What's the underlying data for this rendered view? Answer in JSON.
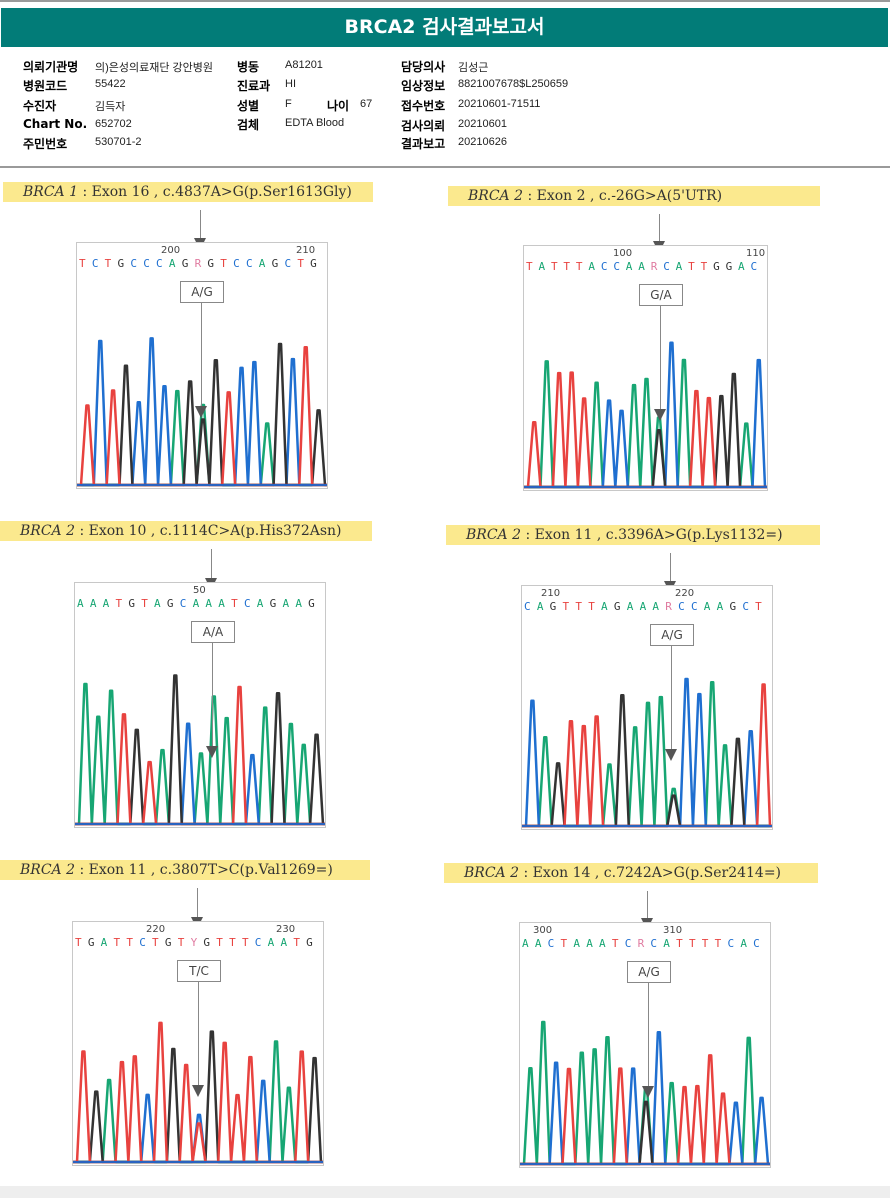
{
  "header": {
    "title": "BRCA2 검사결과보고서"
  },
  "patient_info": {
    "institution_label": "의뢰기관명",
    "institution_value": "의)은성의료재단 강안병원",
    "ward_label": "병동",
    "ward_value": "A81201",
    "doctor_label": "담당의사",
    "doctor_value": "김성근",
    "hospital_code_label": "병원코드",
    "hospital_code_value": "55422",
    "department_label": "진료과",
    "department_value": "HI",
    "clinical_info_label": "임상정보",
    "clinical_info_value": "8821007678$L250659",
    "patient_label": "수진자",
    "patient_value": "김득자",
    "sex_label": "성별",
    "sex_value": "F",
    "age_label": "나이",
    "age_value": "67",
    "receipt_label": "접수번호",
    "receipt_value": "20210601-71511",
    "chart_no_label": "Chart No.",
    "chart_no_value": "652702",
    "specimen_label": "검체",
    "specimen_value": "EDTA Blood",
    "request_date_label": "검사의뢰",
    "request_date_value": "20210601",
    "resident_id_label": "주민번호",
    "resident_id_value": "530701-2",
    "report_date_label": "결과보고",
    "report_date_value": "20210626"
  },
  "colors": {
    "banner": "#027c78",
    "caption_highlight": "#fbe98e",
    "A": "#17a673",
    "C": "#1f6fd0",
    "G": "#333333",
    "T": "#e8423f",
    "ambiguous": "#e07aa0"
  },
  "variants": [
    {
      "gene": "BRCA 1",
      "detail": " : Exon 16 , c.4837A>G(p.Ser1613Gly)",
      "pos_left": "200",
      "pos_right": "210",
      "sequence": "TCTGCCCAGRGTCCAGCTG",
      "genotype": "A/G",
      "peaks": "T C T G C C C A G R G T C C A G C T G"
    },
    {
      "gene": "BRCA 2",
      "detail": " : Exon 2 , c.-26G>A(5'UTR)",
      "pos_left": "100",
      "pos_right": "110",
      "sequence": "TATTTACCAARCATTGGAC",
      "genotype": "G/A"
    },
    {
      "gene": "BRCA 2",
      "detail": " : Exon 10 , c.1114C>A(p.His372Asn)",
      "pos_left": "50",
      "pos_right": "",
      "sequence": "AAATGTAGCAAATCAGAAG",
      "genotype": "A/A"
    },
    {
      "gene": "BRCA 2",
      "detail": " : Exon 11 , c.3396A>G(p.Lys1132=)",
      "pos_left": "210",
      "pos_right": "220",
      "sequence": "CAGTTTAGAAARCCAAGCT",
      "genotype": "A/G"
    },
    {
      "gene": "BRCA 2",
      "detail": " : Exon 11 , c.3807T>C(p.Val1269=)",
      "pos_left": "220",
      "pos_right": "230",
      "sequence": "TGATTCTGTYGTTTCAATG",
      "genotype": "T/C"
    },
    {
      "gene": "BRCA 2",
      "detail": " : Exon 14 , c.7242A>G(p.Ser2414=)",
      "pos_left": "300",
      "pos_right": "310",
      "sequence": "AACTAAATCRCATTTTCAC",
      "genotype": "A/G"
    }
  ]
}
